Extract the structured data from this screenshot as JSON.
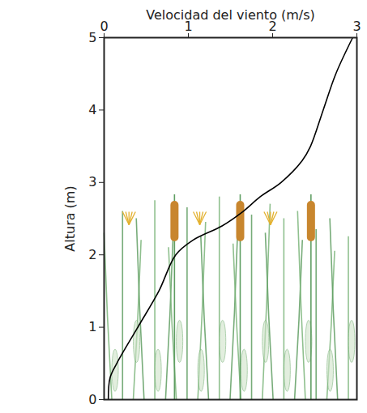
{
  "chart_data": {
    "type": "line",
    "x_label": "Velocidad del viento (m/s)",
    "y_label": "Altura (m)",
    "x": [
      0.05,
      0.07,
      0.15,
      0.4,
      0.65,
      0.85,
      1.05,
      1.4,
      1.65,
      1.85,
      2.1,
      2.35,
      2.45,
      2.6,
      2.75,
      2.95
    ],
    "values": [
      0,
      0.3,
      0.5,
      1,
      1.5,
      2,
      2.2,
      2.4,
      2.6,
      2.8,
      3,
      3.3,
      3.5,
      4,
      4.5,
      5
    ],
    "color": "#000000",
    "xlim": [
      0,
      3
    ],
    "xticks": [
      0,
      1,
      2,
      3
    ],
    "ylim": [
      0,
      5
    ],
    "yticks": [
      0,
      1,
      2,
      3,
      4,
      5
    ],
    "grid": false
  }
}
